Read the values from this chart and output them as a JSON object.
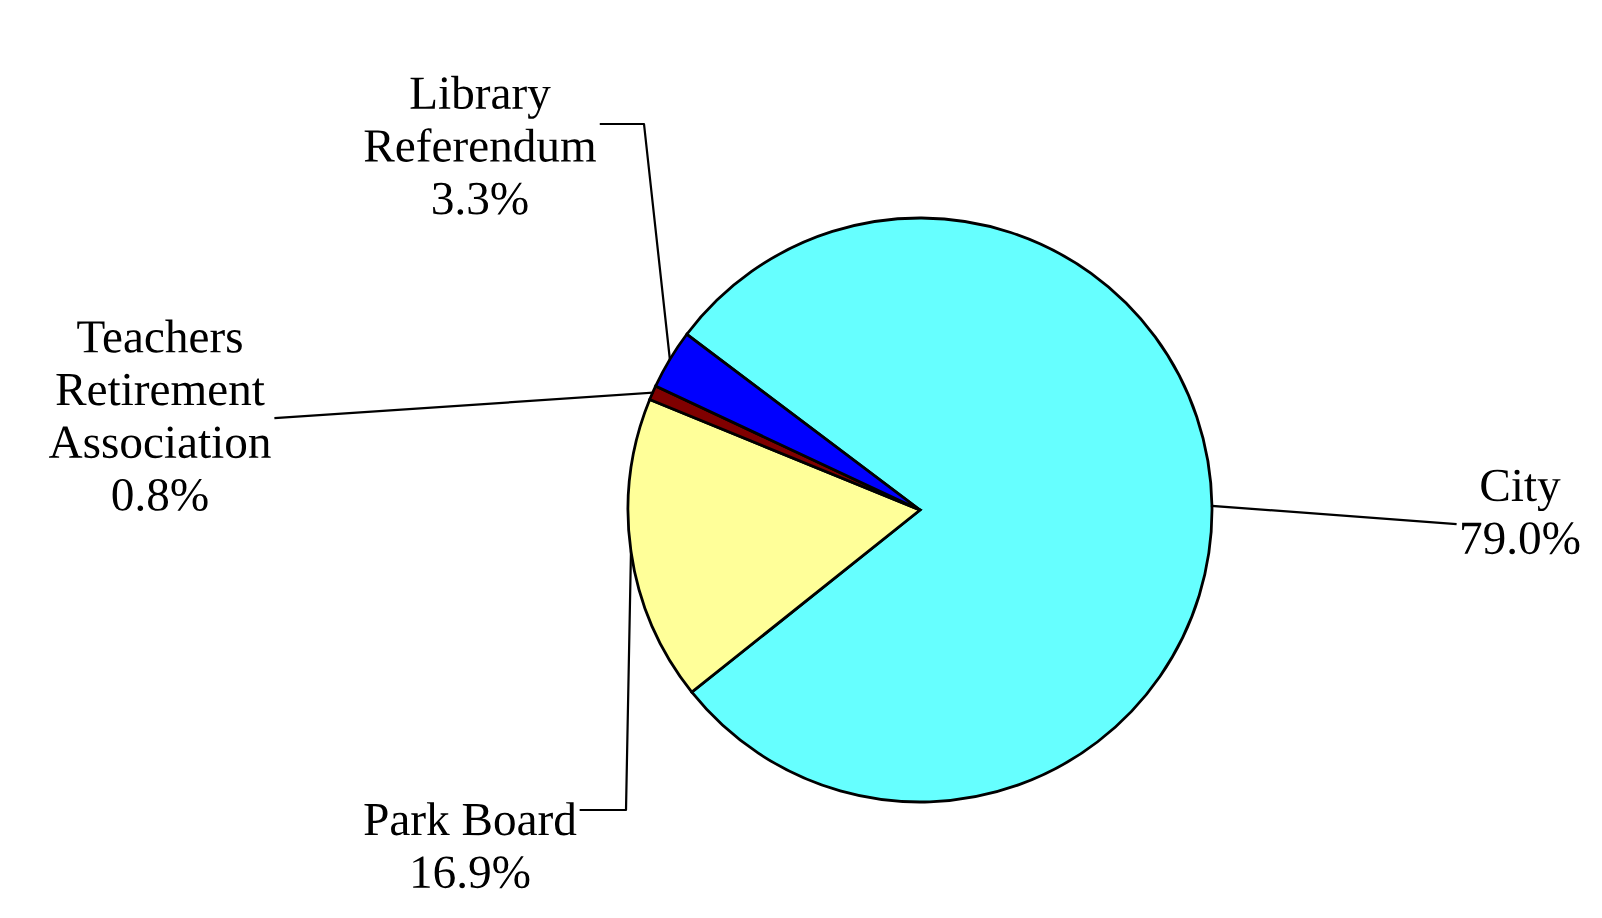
{
  "chart_data": {
    "type": "pie",
    "categories": [
      "City",
      "Park Board",
      "Teachers\nRetirement\nAssociation",
      "Library\nReferendum"
    ],
    "values": [
      79.0,
      16.9,
      0.8,
      3.3
    ],
    "colors": [
      "#66ffff",
      "#ffff99",
      "#800000",
      "#0000ff"
    ],
    "value_labels": [
      "79.0%",
      "16.9%",
      "0.8%",
      "3.3%"
    ]
  }
}
